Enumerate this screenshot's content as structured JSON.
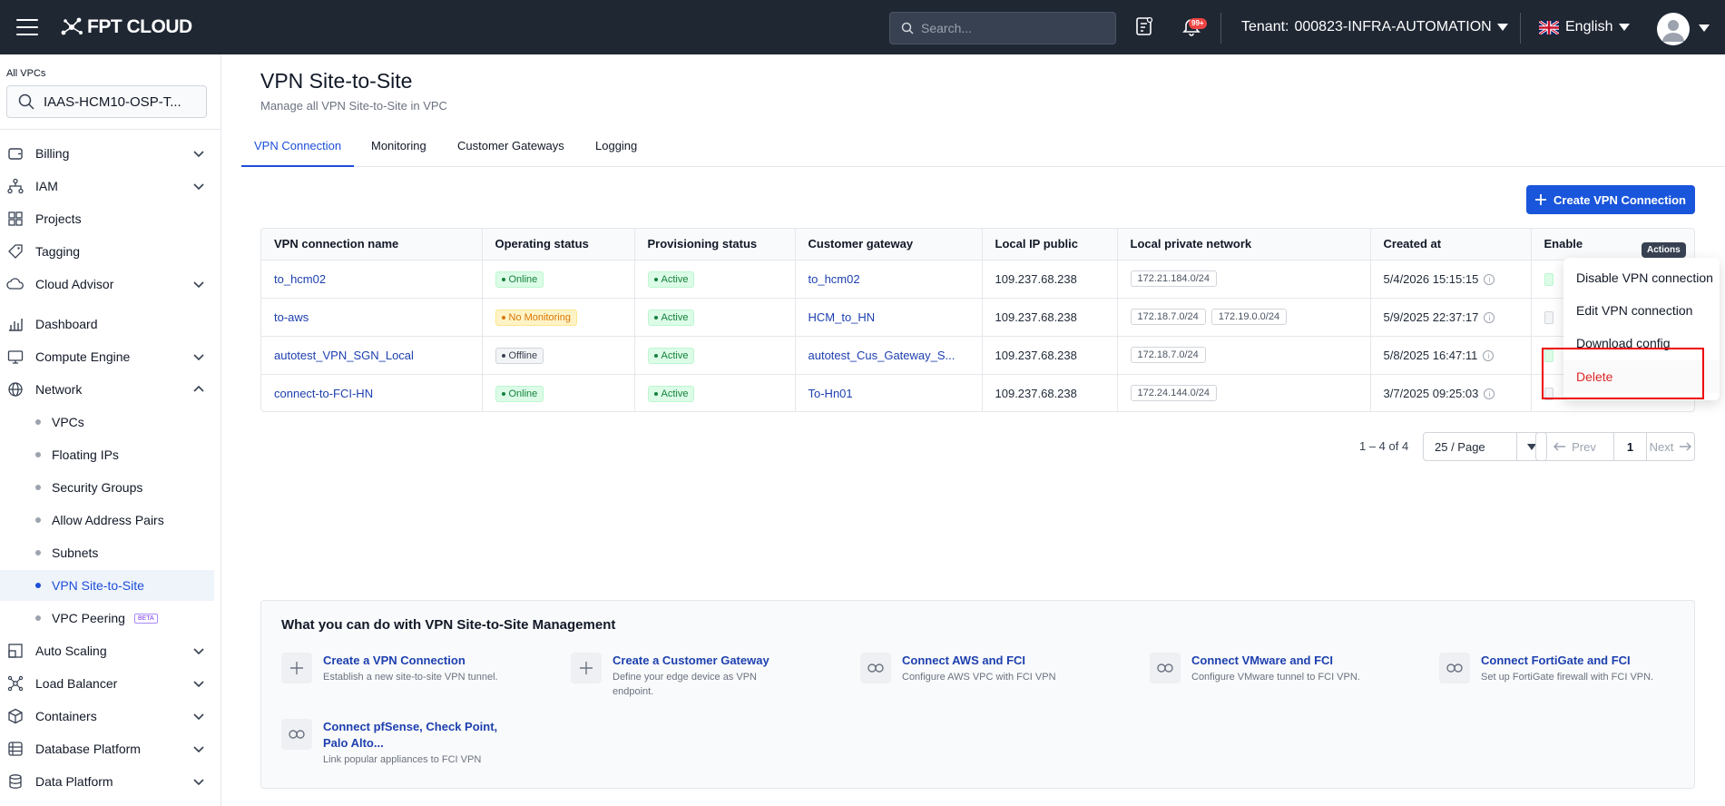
{
  "header": {
    "brand": "FPT CLOUD",
    "search_placeholder": "Search...",
    "notif_badge": "99+",
    "tenant_label": "Tenant:",
    "tenant_value": "000823-INFRA-AUTOMATION",
    "language": "English"
  },
  "sidebar": {
    "vpc_label": "All VPCs",
    "vpc_selected": "IAAS-HCM10-OSP-T...",
    "items": [
      {
        "label": "Billing"
      },
      {
        "label": "IAM"
      },
      {
        "label": "Projects"
      },
      {
        "label": "Tagging"
      },
      {
        "label": "Cloud Advisor"
      },
      {
        "label": "Dashboard"
      },
      {
        "label": "Compute Engine"
      },
      {
        "label": "Network"
      },
      {
        "label": "Auto Scaling"
      },
      {
        "label": "Load Balancer"
      },
      {
        "label": "Containers"
      },
      {
        "label": "Database Platform"
      },
      {
        "label": "Data Platform"
      }
    ],
    "network_sub": [
      {
        "label": "VPCs"
      },
      {
        "label": "Floating IPs"
      },
      {
        "label": "Security Groups"
      },
      {
        "label": "Allow Address Pairs"
      },
      {
        "label": "Subnets"
      },
      {
        "label": "VPN Site-to-Site"
      },
      {
        "label": "VPC Peering"
      }
    ],
    "beta_label": "BETA"
  },
  "page": {
    "title": "VPN Site-to-Site",
    "subtitle": "Manage all VPN Site-to-Site in VPC",
    "tabs": [
      "VPN Connection",
      "Monitoring",
      "Customer Gateways",
      "Logging"
    ],
    "create_button": "Create VPN Connection"
  },
  "table": {
    "columns": [
      "VPN connection name",
      "Operating status",
      "Provisioning status",
      "Customer gateway",
      "Local IP public",
      "Local private network",
      "Created at",
      "Enable"
    ],
    "rows": [
      {
        "name": "to_hcm02",
        "operating": "Online",
        "provisioning": "Active",
        "gateway": "to_hcm02",
        "ip": "109.237.68.238",
        "networks": [
          "172.21.184.0/24"
        ],
        "created": "5/4/2026 15:15:15"
      },
      {
        "name": "to-aws",
        "operating": "No Monitoring",
        "provisioning": "Active",
        "gateway": "HCM_to_HN",
        "ip": "109.237.68.238",
        "networks": [
          "172.18.7.0/24",
          "172.19.0.0/24"
        ],
        "created": "5/9/2025 22:37:17"
      },
      {
        "name": "autotest_VPN_SGN_Local",
        "operating": "Offline",
        "provisioning": "Active",
        "gateway": "autotest_Cus_Gateway_S...",
        "ip": "109.237.68.238",
        "networks": [
          "172.18.7.0/24"
        ],
        "created": "5/8/2025 16:47:11"
      },
      {
        "name": "connect-to-FCI-HN",
        "operating": "Online",
        "provisioning": "Active",
        "gateway": "To-Hn01",
        "ip": "109.237.68.238",
        "networks": [
          "172.24.144.0/24"
        ],
        "created": "3/7/2025 09:25:03"
      }
    ]
  },
  "actions_menu": {
    "tooltip": "Actions",
    "items": [
      "Disable VPN connection",
      "Edit VPN connection",
      "Download config",
      "Delete"
    ]
  },
  "pagination": {
    "total": "1 – 4 of 4",
    "page_size": "25 / Page",
    "prev": "Prev",
    "current": "1",
    "next": "Next"
  },
  "help": {
    "title": "What you can do with VPN Site-to-Site Management",
    "items": [
      {
        "title": "Create a VPN Connection",
        "desc": "Establish a new site-to-site VPN tunnel.",
        "icon": "plus-icon"
      },
      {
        "title": "Create a Customer Gateway",
        "desc": "Define your edge device as VPN endpoint.",
        "icon": "plus-icon"
      },
      {
        "title": "Connect AWS and FCI",
        "desc": "Configure AWS VPC with FCI VPN",
        "icon": "link-icon"
      },
      {
        "title": "Connect VMware and FCI",
        "desc": "Configure VMware tunnel to FCI VPN.",
        "icon": "link-icon"
      },
      {
        "title": "Connect FortiGate and FCI",
        "desc": "Set up FortiGate firewall with FCI VPN.",
        "icon": "link-icon"
      },
      {
        "title": "Connect pfSense, Check Point, Palo Alto...",
        "desc": "Link popular appliances to FCI VPN",
        "icon": "link-icon"
      }
    ]
  }
}
